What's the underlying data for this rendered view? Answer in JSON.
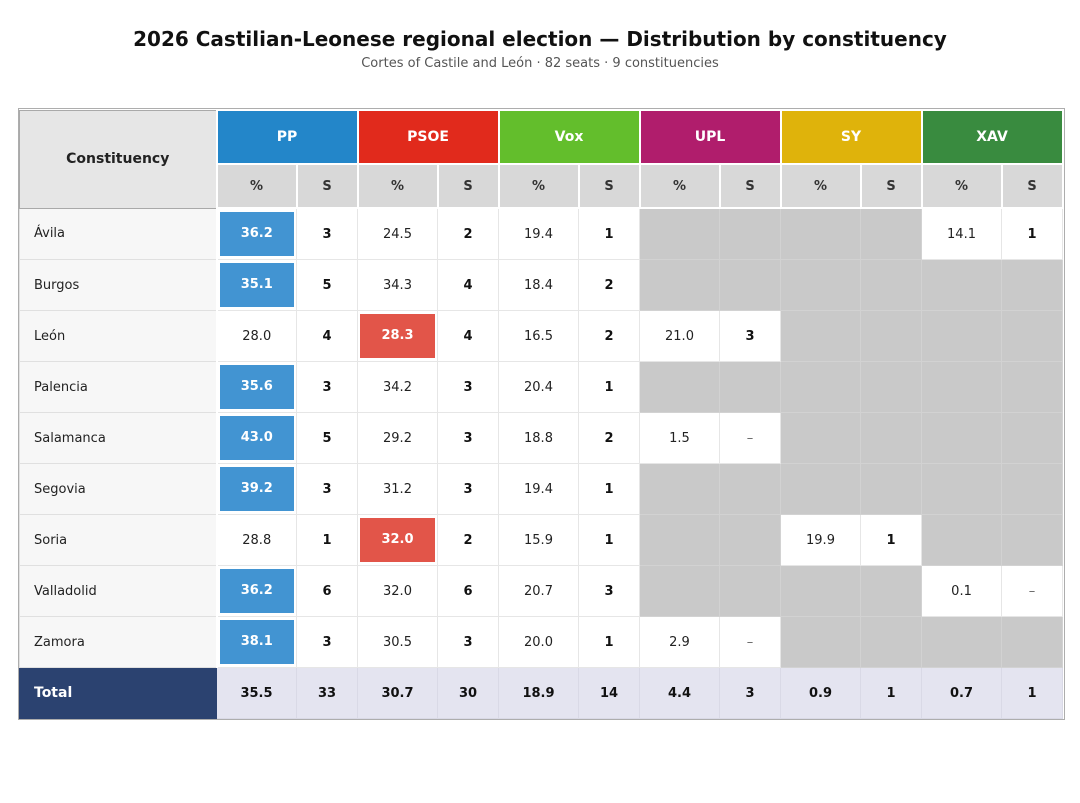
{
  "header": {
    "title": "2026 Castilian-Leonese regional election — Distribution by constituency",
    "subtitle": "Cortes of Castile and León  ·  82 seats  ·  9 constituencies"
  },
  "table": {
    "constituency_header": "Constituency",
    "pct_label": "%",
    "seats_label": "S",
    "parties": [
      {
        "name": "PP",
        "color": "#2386c9",
        "win_color": "#4294d2"
      },
      {
        "name": "PSOE",
        "color": "#e12a1c",
        "win_color": "#e25549"
      },
      {
        "name": "Vox",
        "color": "#63be2c",
        "win_color": "#63be2c"
      },
      {
        "name": "UPL",
        "color": "#b01d6c",
        "win_color": "#b01d6c"
      },
      {
        "name": "SY",
        "color": "#dfb30b",
        "win_color": "#dfb30b"
      },
      {
        "name": "XAV",
        "color": "#398b3f",
        "win_color": "#398b3f"
      }
    ],
    "rows": [
      {
        "name": "Ávila",
        "cells": [
          {
            "pct": "36.2",
            "seats": "3",
            "win": true
          },
          {
            "pct": "24.5",
            "seats": "2"
          },
          {
            "pct": "19.4",
            "seats": "1"
          },
          {
            "absent": true
          },
          {
            "absent": true
          },
          {
            "pct": "14.1",
            "seats": "1"
          }
        ]
      },
      {
        "name": "Burgos",
        "cells": [
          {
            "pct": "35.1",
            "seats": "5",
            "win": true
          },
          {
            "pct": "34.3",
            "seats": "4"
          },
          {
            "pct": "18.4",
            "seats": "2"
          },
          {
            "absent": true
          },
          {
            "absent": true
          },
          {
            "absent": true
          }
        ]
      },
      {
        "name": "León",
        "cells": [
          {
            "pct": "28.0",
            "seats": "4"
          },
          {
            "pct": "28.3",
            "seats": "4",
            "win": true
          },
          {
            "pct": "16.5",
            "seats": "2"
          },
          {
            "pct": "21.0",
            "seats": "3"
          },
          {
            "absent": true
          },
          {
            "absent": true
          }
        ]
      },
      {
        "name": "Palencia",
        "cells": [
          {
            "pct": "35.6",
            "seats": "3",
            "win": true
          },
          {
            "pct": "34.2",
            "seats": "3"
          },
          {
            "pct": "20.4",
            "seats": "1"
          },
          {
            "absent": true
          },
          {
            "absent": true
          },
          {
            "absent": true
          }
        ]
      },
      {
        "name": "Salamanca",
        "cells": [
          {
            "pct": "43.0",
            "seats": "5",
            "win": true
          },
          {
            "pct": "29.2",
            "seats": "3"
          },
          {
            "pct": "18.8",
            "seats": "2"
          },
          {
            "pct": "1.5",
            "seats": "–"
          },
          {
            "absent": true
          },
          {
            "absent": true
          }
        ]
      },
      {
        "name": "Segovia",
        "cells": [
          {
            "pct": "39.2",
            "seats": "3",
            "win": true
          },
          {
            "pct": "31.2",
            "seats": "3"
          },
          {
            "pct": "19.4",
            "seats": "1"
          },
          {
            "absent": true
          },
          {
            "absent": true
          },
          {
            "absent": true
          }
        ]
      },
      {
        "name": "Soria",
        "cells": [
          {
            "pct": "28.8",
            "seats": "1"
          },
          {
            "pct": "32.0",
            "seats": "2",
            "win": true
          },
          {
            "pct": "15.9",
            "seats": "1"
          },
          {
            "absent": true
          },
          {
            "pct": "19.9",
            "seats": "1"
          },
          {
            "absent": true
          }
        ]
      },
      {
        "name": "Valladolid",
        "cells": [
          {
            "pct": "36.2",
            "seats": "6",
            "win": true
          },
          {
            "pct": "32.0",
            "seats": "6"
          },
          {
            "pct": "20.7",
            "seats": "3"
          },
          {
            "absent": true
          },
          {
            "absent": true
          },
          {
            "pct": "0.1",
            "seats": "–"
          }
        ]
      },
      {
        "name": "Zamora",
        "cells": [
          {
            "pct": "38.1",
            "seats": "3",
            "win": true
          },
          {
            "pct": "30.5",
            "seats": "3"
          },
          {
            "pct": "20.0",
            "seats": "1"
          },
          {
            "pct": "2.9",
            "seats": "–"
          },
          {
            "absent": true
          },
          {
            "absent": true
          }
        ]
      }
    ],
    "total": {
      "label": "Total",
      "cells": [
        {
          "pct": "35.5",
          "seats": "33"
        },
        {
          "pct": "30.7",
          "seats": "30"
        },
        {
          "pct": "18.9",
          "seats": "14"
        },
        {
          "pct": "4.4",
          "seats": "3"
        },
        {
          "pct": "0.9",
          "seats": "1"
        },
        {
          "pct": "0.7",
          "seats": "1"
        }
      ]
    },
    "colors": {
      "total_label_bg": "#2b4270",
      "total_row_bg": "#e4e4f0",
      "absent_bg": "#c9c9c9",
      "subheader_bg": "#d8d8d8",
      "constituency_header_bg": "#e6e6e6"
    }
  },
  "chart_data": {
    "type": "table",
    "title": "2026 Castilian-Leonese regional election — Distribution by constituency",
    "subtitle": "Cortes of Castile and León · 82 seats · 9 constituencies",
    "columns": [
      "Constituency",
      "PP %",
      "PP S",
      "PSOE %",
      "PSOE S",
      "Vox %",
      "Vox S",
      "UPL %",
      "UPL S",
      "SY %",
      "SY S",
      "XAV %",
      "XAV S"
    ],
    "rows": [
      [
        "Ávila",
        36.2,
        3,
        24.5,
        2,
        19.4,
        1,
        null,
        null,
        null,
        null,
        14.1,
        1
      ],
      [
        "Burgos",
        35.1,
        5,
        34.3,
        4,
        18.4,
        2,
        null,
        null,
        null,
        null,
        null,
        null
      ],
      [
        "León",
        28.0,
        4,
        28.3,
        4,
        16.5,
        2,
        21.0,
        3,
        null,
        null,
        null,
        null
      ],
      [
        "Palencia",
        35.6,
        3,
        34.2,
        3,
        20.4,
        1,
        null,
        null,
        null,
        null,
        null,
        null
      ],
      [
        "Salamanca",
        43.0,
        5,
        29.2,
        3,
        18.8,
        2,
        1.5,
        0,
        null,
        null,
        null,
        null
      ],
      [
        "Segovia",
        39.2,
        3,
        31.2,
        3,
        19.4,
        1,
        null,
        null,
        null,
        null,
        null,
        null
      ],
      [
        "Soria",
        28.8,
        1,
        32.0,
        2,
        15.9,
        1,
        null,
        null,
        19.9,
        1,
        null,
        null
      ],
      [
        "Valladolid",
        36.2,
        6,
        32.0,
        6,
        20.7,
        3,
        null,
        null,
        null,
        null,
        0.1,
        0
      ],
      [
        "Zamora",
        38.1,
        3,
        30.5,
        3,
        20.0,
        1,
        2.9,
        0,
        null,
        null,
        null,
        null
      ]
    ],
    "total": [
      "Total",
      35.5,
      33,
      30.7,
      30,
      18.9,
      14,
      4.4,
      3,
      0.9,
      1,
      0.7,
      1
    ],
    "winners_by_row": [
      "PP",
      "PP",
      "PSOE",
      "PP",
      "PP",
      "PP",
      "PSOE",
      "PP",
      "PP"
    ]
  }
}
